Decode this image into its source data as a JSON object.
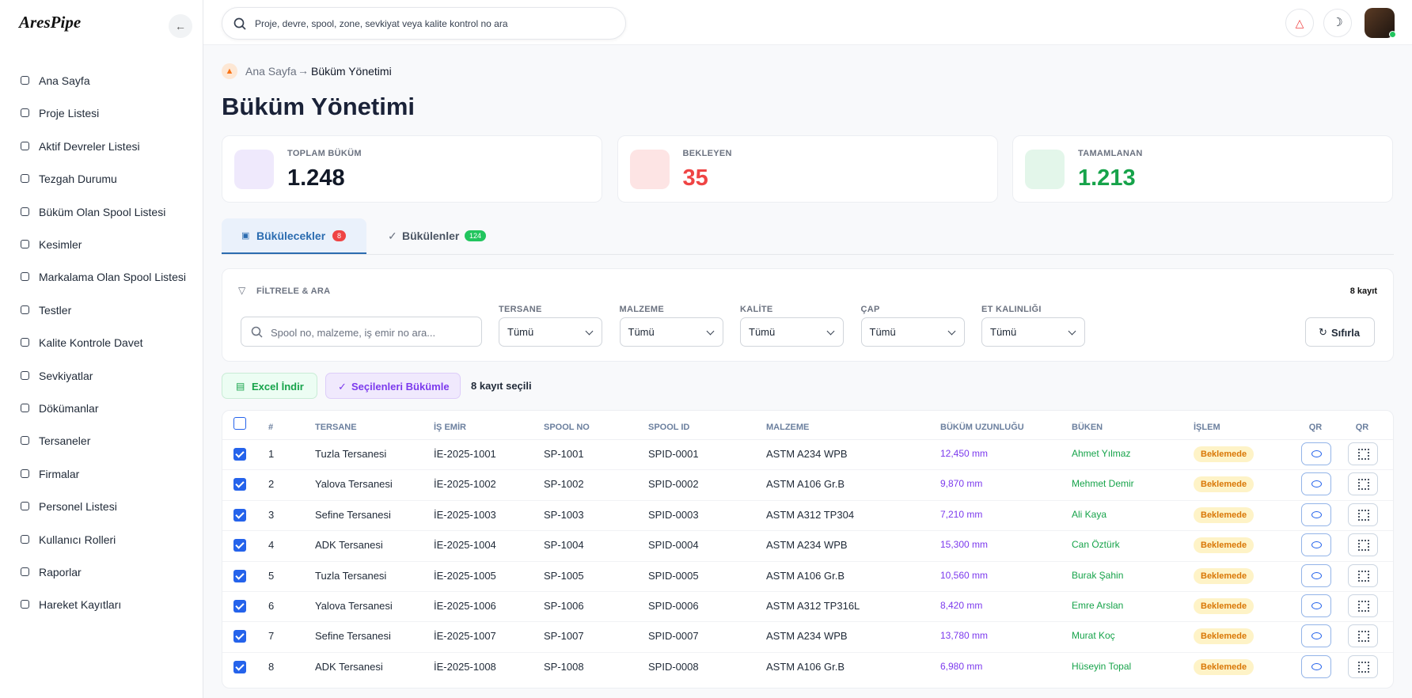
{
  "brand": "AresPipe",
  "search_placeholder": "Proje, devre, spool, zone, sevkiyat veya kalite kontrol no ara",
  "nav": [
    "Ana Sayfa",
    "Proje Listesi",
    "Aktif Devreler Listesi",
    "Tezgah Durumu",
    "Büküm Olan Spool Listesi",
    "Kesimler",
    "Markalama Olan Spool Listesi",
    "Testler",
    "Kalite Kontrole Davet",
    "Sevkiyatlar",
    "Dökümanlar",
    "Tersaneler",
    "Firmalar",
    "Personel Listesi",
    "Kullanıcı Rolleri",
    "Raporlar",
    "Hareket Kayıtları"
  ],
  "breadcrumb": [
    "Ana Sayfa",
    "Büküm Yönetimi"
  ],
  "page_title": "Büküm Yönetimi",
  "stats": [
    {
      "label": "TOPLAM BÜKÜM",
      "value": "1.248"
    },
    {
      "label": "BEKLEYEN",
      "value": "35"
    },
    {
      "label": "TAMAMLANAN",
      "value": "1.213"
    }
  ],
  "tabs": [
    {
      "label": "Bükülecekler",
      "badge": "8"
    },
    {
      "label": "Bükülenler",
      "badge": "124"
    }
  ],
  "filter": {
    "title": "FİLTRELE & ARA",
    "count": "8 kayıt",
    "search_placeholder": "Spool no, malzeme, iş emir no ara...",
    "fields": [
      {
        "label": "TERSANE",
        "value": "Tümü"
      },
      {
        "label": "MALZEME",
        "value": "Tümü"
      },
      {
        "label": "KALİTE",
        "value": "Tümü"
      },
      {
        "label": "ÇAP",
        "value": "Tümü"
      },
      {
        "label": "ET KALINLIĞI",
        "value": "Tümü"
      }
    ],
    "reset": "Sıfırla"
  },
  "actions": {
    "excel": "Excel İndir",
    "bend": "Seçilenleri Bükümle",
    "selected": "8 kayıt seçili"
  },
  "table": {
    "headers": [
      "#",
      "TERSANE",
      "İŞ EMİR",
      "SPOOL NO",
      "SPOOL ID",
      "MALZEME",
      "BÜKÜM UZUNLUĞU",
      "BÜKEN",
      "İŞLEM",
      "QR",
      "QR"
    ],
    "rows": [
      [
        "1",
        "Tuzla Tersanesi",
        "İE-2025-1001",
        "SP-1001",
        "SPID-0001",
        "ASTM A234 WPB",
        "12,450 mm",
        "Ahmet Yılmaz",
        "Beklemede"
      ],
      [
        "2",
        "Yalova Tersanesi",
        "İE-2025-1002",
        "SP-1002",
        "SPID-0002",
        "ASTM A106 Gr.B",
        "9,870 mm",
        "Mehmet Demir",
        "Beklemede"
      ],
      [
        "3",
        "Sefine Tersanesi",
        "İE-2025-1003",
        "SP-1003",
        "SPID-0003",
        "ASTM A312 TP304",
        "7,210 mm",
        "Ali Kaya",
        "Beklemede"
      ],
      [
        "4",
        "ADK Tersanesi",
        "İE-2025-1004",
        "SP-1004",
        "SPID-0004",
        "ASTM A234 WPB",
        "15,300 mm",
        "Can Öztürk",
        "Beklemede"
      ],
      [
        "5",
        "Tuzla Tersanesi",
        "İE-2025-1005",
        "SP-1005",
        "SPID-0005",
        "ASTM A106 Gr.B",
        "10,560 mm",
        "Burak Şahin",
        "Beklemede"
      ],
      [
        "6",
        "Yalova Tersanesi",
        "İE-2025-1006",
        "SP-1006",
        "SPID-0006",
        "ASTM A312 TP316L",
        "8,420 mm",
        "Emre Arslan",
        "Beklemede"
      ],
      [
        "7",
        "Sefine Tersanesi",
        "İE-2025-1007",
        "SP-1007",
        "SPID-0007",
        "ASTM A234 WPB",
        "13,780 mm",
        "Murat Koç",
        "Beklemede"
      ],
      [
        "8",
        "ADK Tersanesi",
        "İE-2025-1008",
        "SP-1008",
        "SPID-0008",
        "ASTM A106 Gr.B",
        "6,980 mm",
        "Hüseyin Topal",
        "Beklemede"
      ]
    ]
  }
}
